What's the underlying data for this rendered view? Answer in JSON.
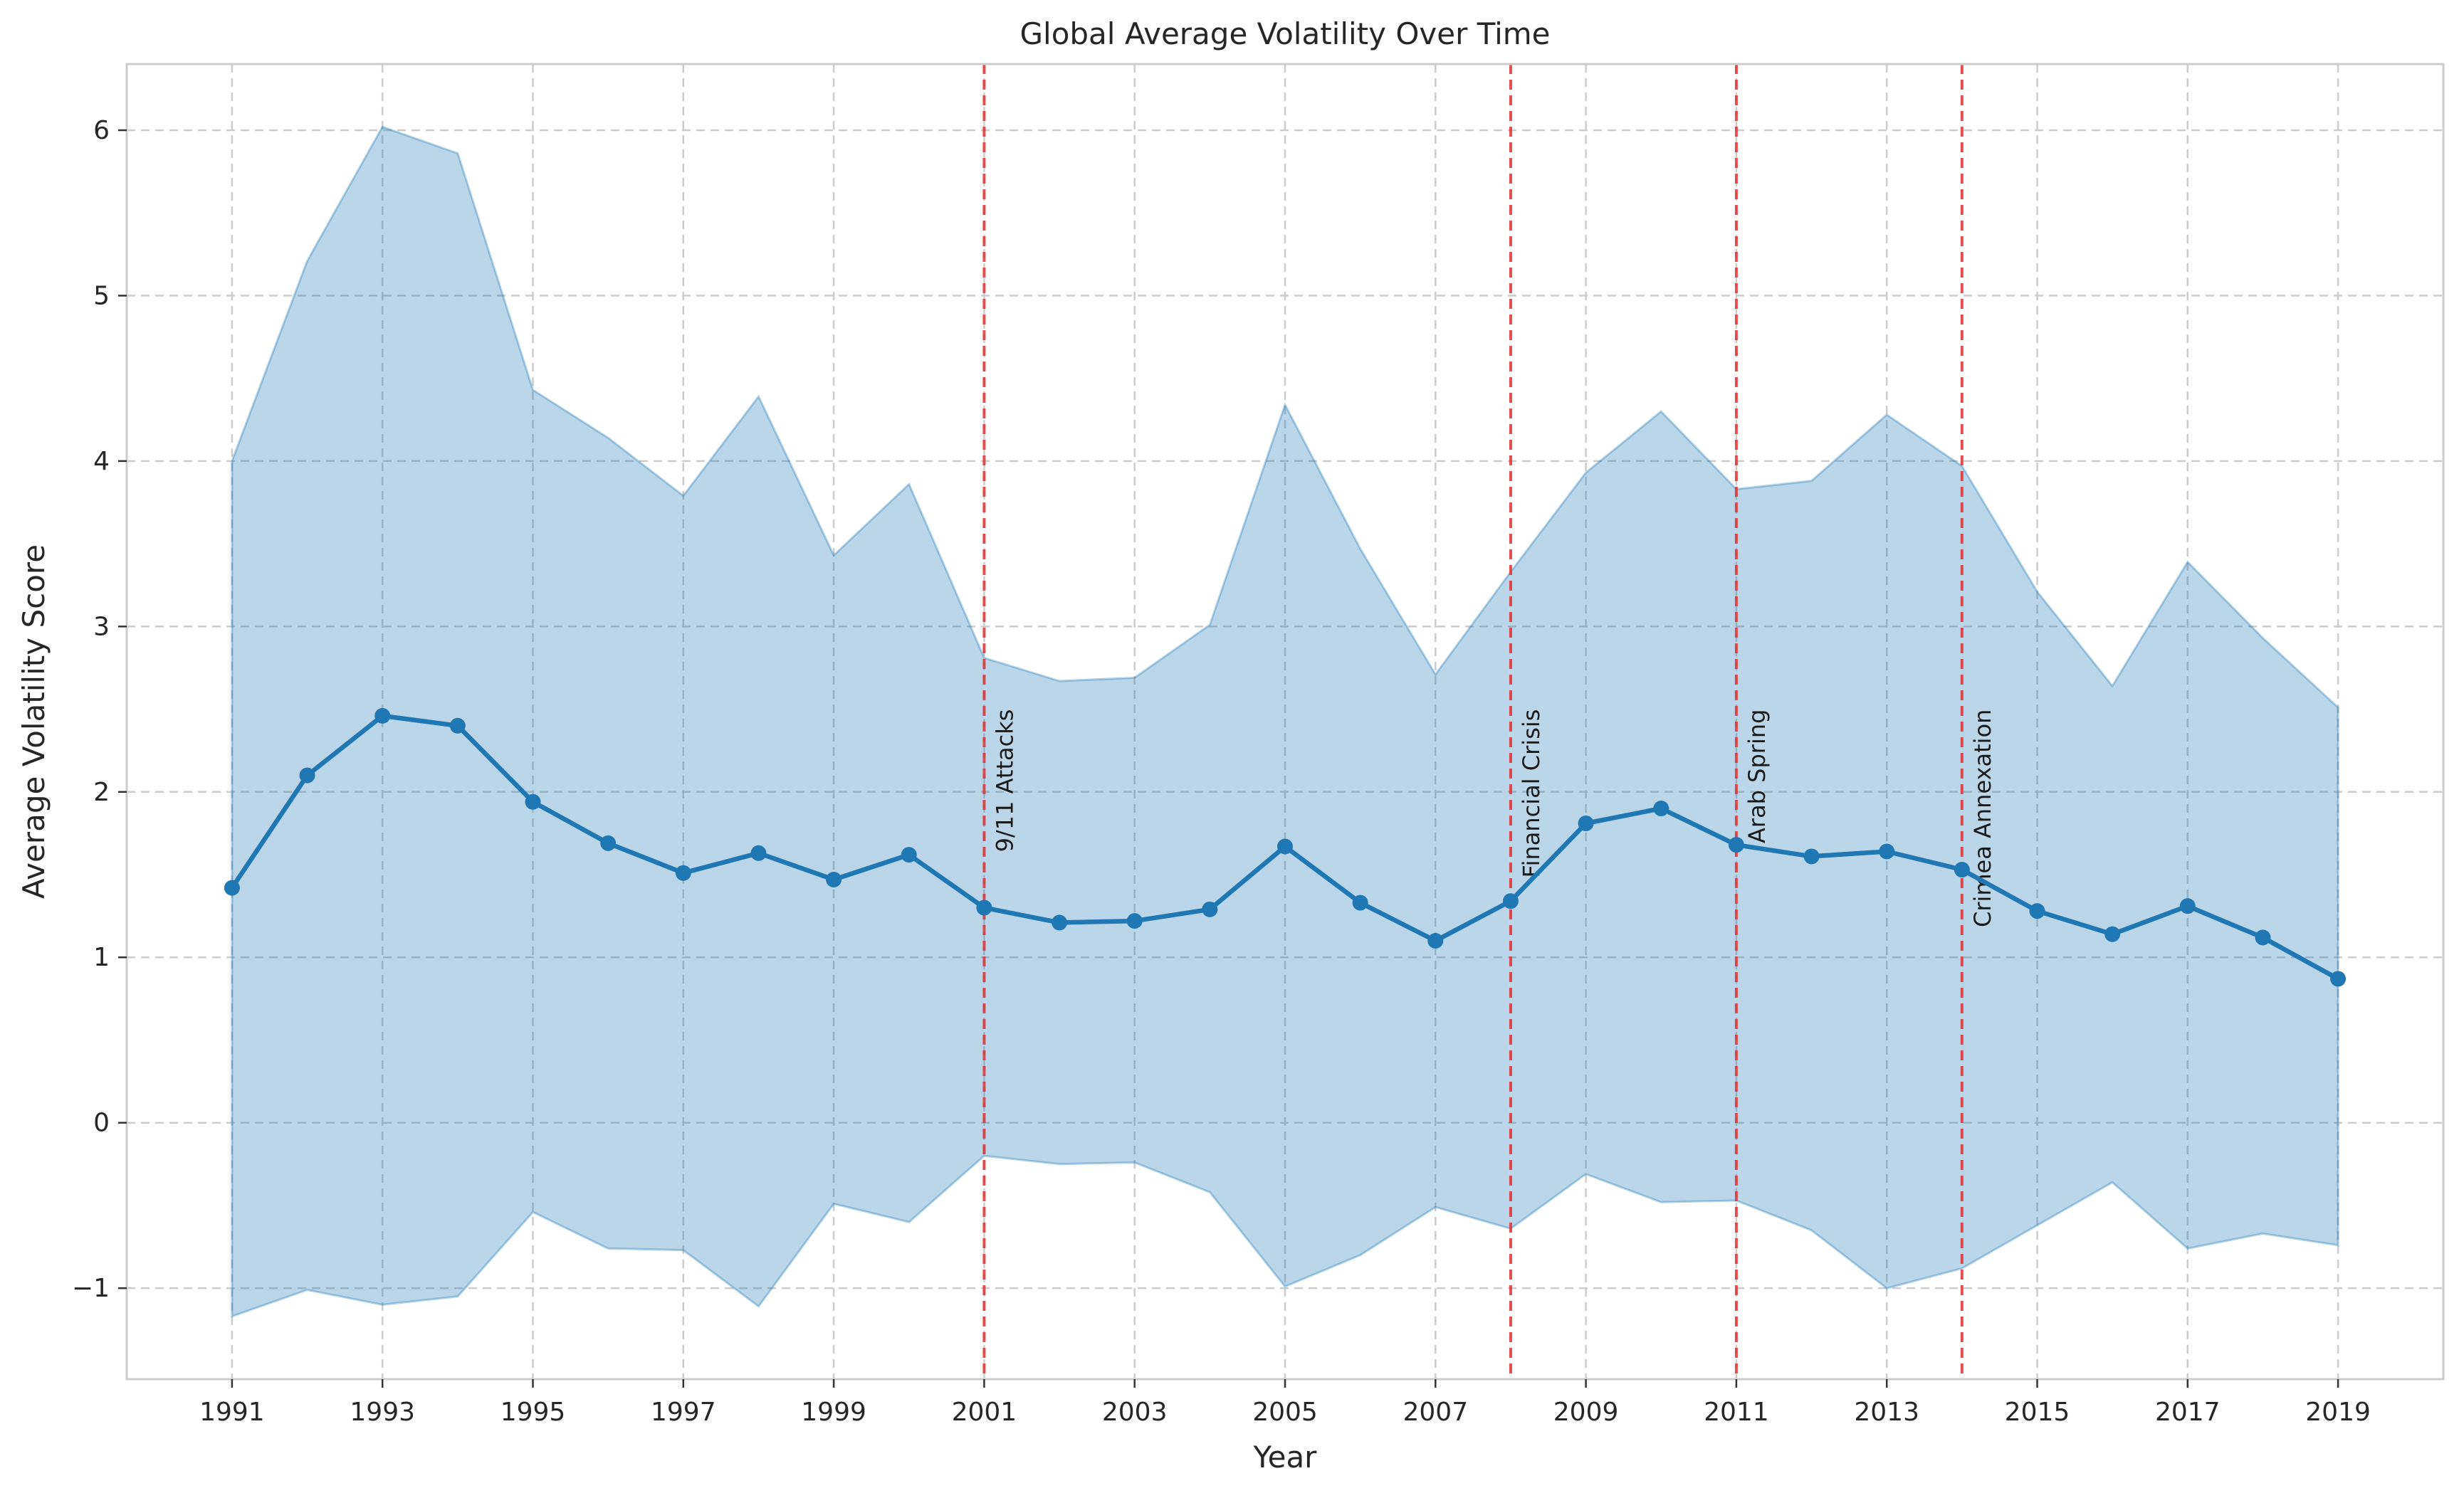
{
  "chart_data": {
    "type": "line",
    "title": "Global Average Volatility Over Time",
    "xlabel": "Year",
    "ylabel": "Average Volatility Score",
    "xlim": [
      1989.6,
      2020.4
    ],
    "ylim": [
      -1.55,
      6.4
    ],
    "xticks": [
      1991,
      1993,
      1995,
      1997,
      1999,
      2001,
      2003,
      2005,
      2007,
      2009,
      2011,
      2013,
      2015,
      2017,
      2019
    ],
    "yticks": [
      -1,
      0,
      1,
      2,
      3,
      4,
      5,
      6
    ],
    "ytick_labels": [
      "−1",
      "0",
      "1",
      "2",
      "3",
      "4",
      "5",
      "6"
    ],
    "grid": true,
    "series": [
      {
        "x": [
          1991,
          1992,
          1993,
          1994,
          1995,
          1996,
          1997,
          1998,
          1999,
          2000,
          2001,
          2002,
          2003,
          2004,
          2005,
          2006,
          2007,
          2008,
          2009,
          2010,
          2011,
          2012,
          2013,
          2014,
          2015,
          2016,
          2017,
          2018,
          2019
        ],
        "values": [
          1.42,
          2.1,
          2.46,
          2.4,
          1.94,
          1.69,
          1.51,
          1.63,
          1.47,
          1.62,
          1.3,
          1.21,
          1.22,
          1.29,
          1.67,
          1.33,
          1.1,
          1.34,
          1.81,
          1.9,
          1.68,
          1.61,
          1.64,
          1.53,
          1.28,
          1.14,
          1.31,
          1.12,
          0.87
        ],
        "color": "#1f77b4"
      }
    ],
    "band": {
      "upper": [
        4.0,
        5.21,
        6.02,
        5.86,
        4.43,
        4.14,
        3.79,
        4.39,
        3.43,
        3.86,
        2.81,
        2.67,
        2.69,
        3.01,
        4.34,
        3.47,
        2.71,
        3.33,
        3.93,
        4.3,
        3.83,
        3.88,
        4.28,
        3.97,
        3.21,
        2.64,
        3.39,
        2.93,
        2.51
      ],
      "lower": [
        -1.17,
        -1.01,
        -1.1,
        -1.05,
        -0.54,
        -0.76,
        -0.77,
        -1.11,
        -0.49,
        -0.6,
        -0.2,
        -0.25,
        -0.24,
        -0.42,
        -0.99,
        -0.8,
        -0.51,
        -0.64,
        -0.31,
        -0.48,
        -0.47,
        -0.65,
        -1.0,
        -0.88,
        -0.62,
        -0.36,
        -0.76,
        -0.67,
        -0.74
      ],
      "color": "#1f77b4"
    },
    "events": [
      {
        "year": 2001,
        "label": "9/11 Attacks"
      },
      {
        "year": 2008,
        "label": "Financial Crisis"
      },
      {
        "year": 2011,
        "label": "Arab Spring"
      },
      {
        "year": 2014,
        "label": "Crimea Annexation"
      }
    ],
    "event_color": "#e03030"
  }
}
